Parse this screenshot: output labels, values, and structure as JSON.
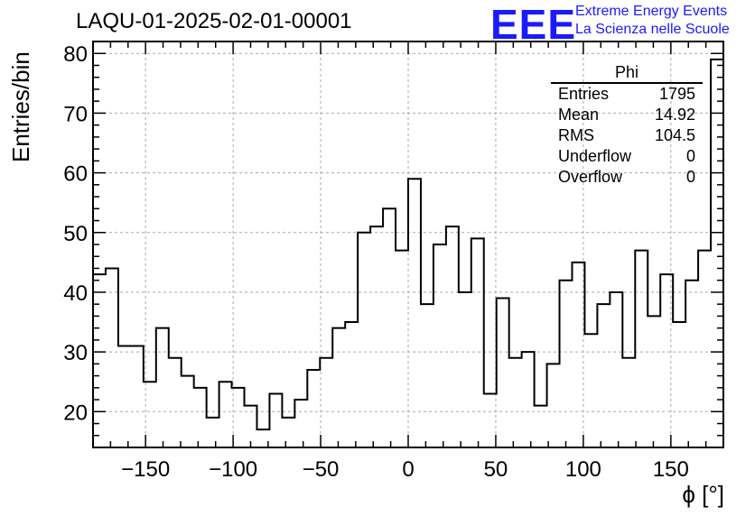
{
  "title": "LAQU-01-2025-02-01-00001",
  "logo": {
    "text": "EEE",
    "line1": "Extreme Energy Events",
    "line2": "La Scienza nelle Scuole",
    "color": "#1a1aff"
  },
  "stats": {
    "name": "Phi",
    "rows": [
      {
        "label": "Entries",
        "value": "1795"
      },
      {
        "label": "Mean",
        "value": "14.92"
      },
      {
        "label": "RMS",
        "value": "104.5"
      },
      {
        "label": "Underflow",
        "value": "0"
      },
      {
        "label": "Overflow",
        "value": "0"
      }
    ]
  },
  "chart_data": {
    "type": "histogram",
    "title": "LAQU-01-2025-02-01-00001",
    "xlabel": "ϕ [°]",
    "ylabel": "Entries/bin",
    "xlim": [
      -180,
      180
    ],
    "ylim": [
      14,
      82
    ],
    "bin_width": 7.2,
    "grid": true,
    "x_ticks": [
      -150,
      -100,
      -50,
      0,
      50,
      100,
      150
    ],
    "x_tick_labels": [
      "−150",
      "−100",
      "−50",
      "0",
      "50",
      "100",
      "150"
    ],
    "y_ticks": [
      20,
      30,
      40,
      50,
      60,
      70,
      80
    ],
    "y_tick_labels": [
      "20",
      "30",
      "40",
      "50",
      "60",
      "70",
      "80"
    ],
    "bin_edges_start": -180,
    "values": [
      43,
      44,
      31,
      31,
      25,
      34,
      29,
      26,
      24,
      19,
      25,
      24,
      21,
      17,
      23,
      19,
      22,
      27,
      29,
      34,
      35,
      50,
      51,
      54,
      47,
      59,
      38,
      48,
      51,
      40,
      49,
      23,
      39,
      29,
      30,
      21,
      28,
      42,
      45,
      33,
      38,
      40,
      29,
      47,
      36,
      43,
      35,
      42,
      47,
      79
    ]
  }
}
